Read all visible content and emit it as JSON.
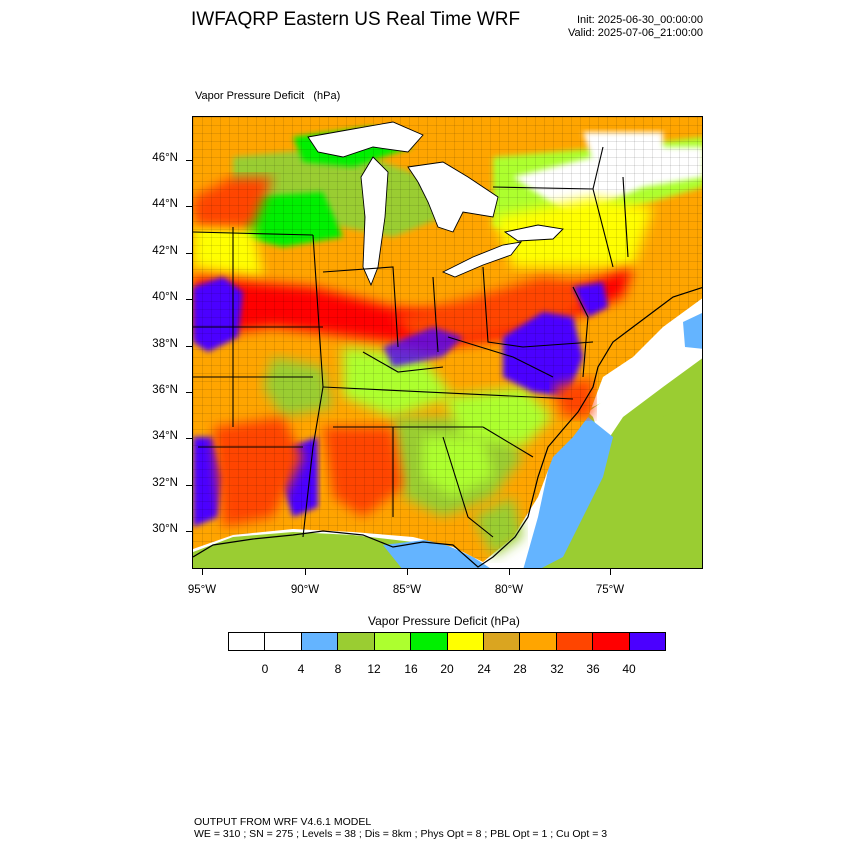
{
  "header": {
    "title": "IWFAQRP Eastern US Real Time WRF",
    "init": "Init: 2025-06-30_00:00:00",
    "valid": "Valid: 2025-07-06_21:00:00"
  },
  "map": {
    "field_label": "Vapor Pressure Deficit   (hPa)",
    "lat_labels": [
      "46°N",
      "44°N",
      "42°N",
      "40°N",
      "38°N",
      "36°N",
      "34°N",
      "32°N",
      "30°N"
    ],
    "lon_labels": [
      "95°W",
      "90°W",
      "85°W",
      "80°W",
      "75°W"
    ]
  },
  "colorbar": {
    "title": "Vapor Pressure Deficit  (hPa)",
    "colors": [
      "#ffffff",
      "#ffffff",
      "#64b4ff",
      "#9acd32",
      "#adff2f",
      "#00f000",
      "#ffff00",
      "#daa520",
      "#ffa500",
      "#ff4500",
      "#ff0000",
      "#4b00ff"
    ],
    "labels": [
      "0",
      "4",
      "8",
      "12",
      "16",
      "20",
      "24",
      "28",
      "32",
      "36",
      "40"
    ]
  },
  "footer": {
    "line1": "OUTPUT FROM WRF V4.6.1 MODEL",
    "line2": "WE = 310 ; SN = 275 ; Levels = 38 ; Dis = 8km ; Phys Opt = 8 ; PBL Opt = 1 ; Cu Opt = 3"
  }
}
